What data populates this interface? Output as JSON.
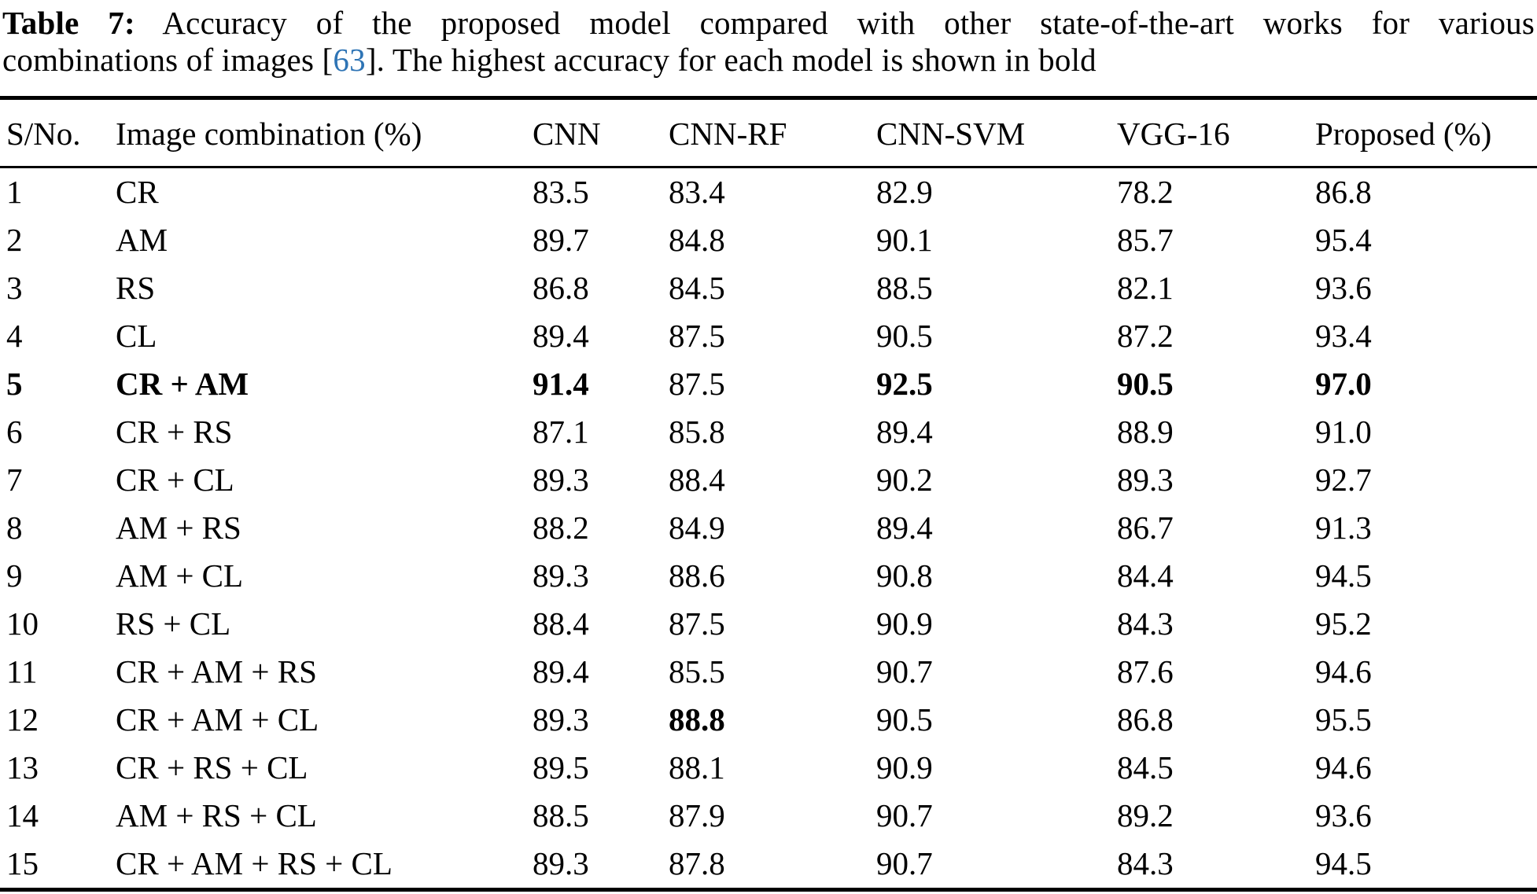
{
  "page": {
    "background": "#ffffff",
    "text_color": "#000000",
    "rule_color": "#000000"
  },
  "caption": {
    "label": "Table 7:",
    "line1_rest": " Accuracy of the proposed model compared with other state-of-the-art works for various",
    "line2_before": "combinations of images [",
    "ref": "63",
    "line2_after": "]. The highest accuracy for each model is shown in bold",
    "ref_color": "#2e74b5"
  },
  "table": {
    "columns": [
      {
        "key": "sno",
        "label": "S/No."
      },
      {
        "key": "combination",
        "label": "Image combination (%)"
      },
      {
        "key": "cnn",
        "label": "CNN"
      },
      {
        "key": "cnn-rf",
        "label": "CNN-RF"
      },
      {
        "key": "cnn-svm",
        "label": "CNN-SVM"
      },
      {
        "key": "vgg-16",
        "label": "VGG-16"
      },
      {
        "key": "proposed",
        "label": "Proposed (%)"
      }
    ],
    "rows": [
      {
        "cells": [
          "1",
          "CR",
          "83.5",
          "83.4",
          "82.9",
          "78.2",
          "86.8"
        ],
        "bold": []
      },
      {
        "cells": [
          "2",
          "AM",
          "89.7",
          "84.8",
          "90.1",
          "85.7",
          "95.4"
        ],
        "bold": []
      },
      {
        "cells": [
          "3",
          "RS",
          "86.8",
          "84.5",
          "88.5",
          "82.1",
          "93.6"
        ],
        "bold": []
      },
      {
        "cells": [
          "4",
          "CL",
          "89.4",
          "87.5",
          "90.5",
          "87.2",
          "93.4"
        ],
        "bold": []
      },
      {
        "cells": [
          "5",
          "CR + AM",
          "91.4",
          "87.5",
          "92.5",
          "90.5",
          "97.0"
        ],
        "bold": [
          0,
          1,
          2,
          4,
          5,
          6
        ]
      },
      {
        "cells": [
          "6",
          "CR + RS",
          "87.1",
          "85.8",
          "89.4",
          "88.9",
          "91.0"
        ],
        "bold": []
      },
      {
        "cells": [
          "7",
          "CR + CL",
          "89.3",
          "88.4",
          "90.2",
          "89.3",
          "92.7"
        ],
        "bold": []
      },
      {
        "cells": [
          "8",
          "AM + RS",
          "88.2",
          "84.9",
          "89.4",
          "86.7",
          "91.3"
        ],
        "bold": []
      },
      {
        "cells": [
          "9",
          "AM + CL",
          "89.3",
          "88.6",
          "90.8",
          "84.4",
          "94.5"
        ],
        "bold": []
      },
      {
        "cells": [
          "10",
          "RS + CL",
          "88.4",
          "87.5",
          "90.9",
          "84.3",
          "95.2"
        ],
        "bold": []
      },
      {
        "cells": [
          "11",
          "CR + AM + RS",
          "89.4",
          "85.5",
          "90.7",
          "87.6",
          "94.6"
        ],
        "bold": []
      },
      {
        "cells": [
          "12",
          "CR + AM + CL",
          "89.3",
          "88.8",
          "90.5",
          "86.8",
          "95.5"
        ],
        "bold": [
          3
        ]
      },
      {
        "cells": [
          "13",
          "CR + RS + CL",
          "89.5",
          "88.1",
          "90.9",
          "84.5",
          "94.6"
        ],
        "bold": []
      },
      {
        "cells": [
          "14",
          "AM + RS + CL",
          "88.5",
          "87.9",
          "90.7",
          "89.2",
          "93.6"
        ],
        "bold": []
      },
      {
        "cells": [
          "15",
          "CR + AM + RS + CL",
          "89.3",
          "87.8",
          "90.7",
          "84.3",
          "94.5"
        ],
        "bold": []
      }
    ]
  }
}
